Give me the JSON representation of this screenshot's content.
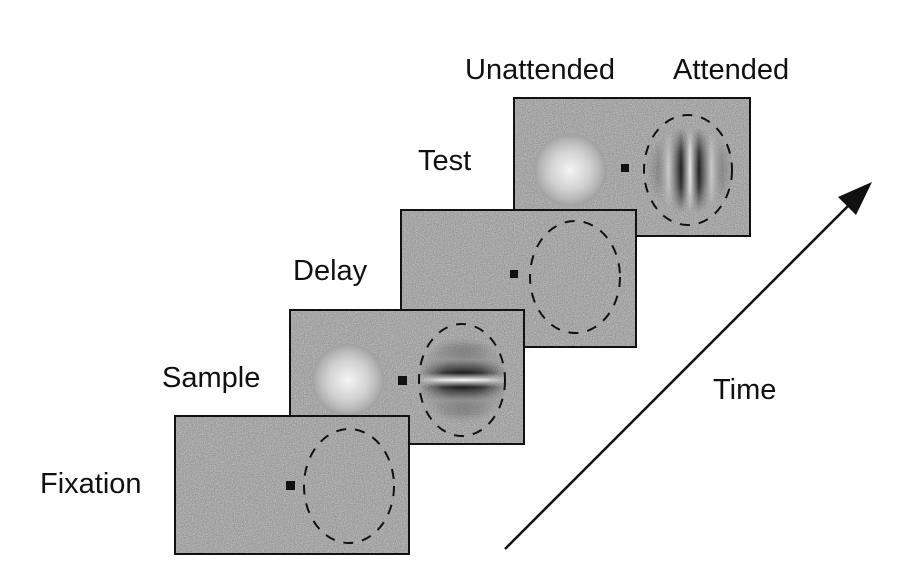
{
  "labels": {
    "fixation": "Fixation",
    "sample": "Sample",
    "delay": "Delay",
    "test": "Test",
    "unattended": "Unattended",
    "attended": "Attended",
    "time": "Time"
  },
  "colors": {
    "background": "#ffffff",
    "screen_fill": "#8a8a8a",
    "ink": "#111111"
  }
}
